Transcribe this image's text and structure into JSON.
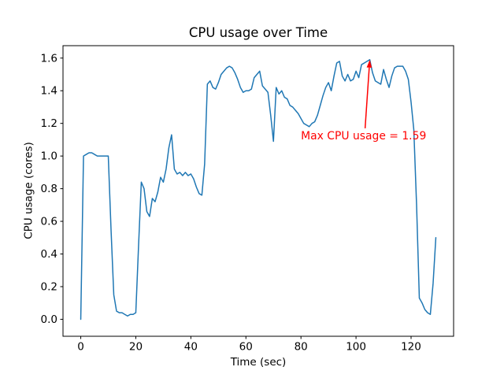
{
  "window": {
    "background": "#ffffff"
  },
  "chart_data": {
    "type": "line",
    "title": "CPU usage over Time",
    "xlabel": "Time (sec)",
    "ylabel": "CPU usage (cores)",
    "grid": false,
    "legend": "none",
    "line_width": 1.5,
    "xlim": [
      -6.45,
      135.45
    ],
    "ylim": [
      -0.104,
      1.676
    ],
    "xticks": [
      0,
      20,
      40,
      60,
      80,
      100,
      120
    ],
    "yticks": [
      0.0,
      0.2,
      0.4,
      0.6,
      0.8,
      1.0,
      1.2,
      1.4,
      1.6
    ],
    "max_value": 1.59,
    "series": [
      {
        "name": "cpu-usage",
        "color": "#1f77b4",
        "x": [
          0,
          1,
          2,
          3,
          4,
          5,
          6,
          7,
          8,
          9,
          10,
          11,
          12,
          13,
          14,
          15,
          16,
          17,
          18,
          19,
          20,
          21,
          22,
          23,
          24,
          25,
          26,
          27,
          28,
          29,
          30,
          31,
          32,
          33,
          34,
          35,
          36,
          37,
          38,
          39,
          40,
          41,
          42,
          43,
          44,
          45,
          46,
          47,
          48,
          49,
          50,
          51,
          52,
          53,
          54,
          55,
          56,
          57,
          58,
          59,
          60,
          61,
          62,
          63,
          64,
          65,
          66,
          67,
          68,
          69,
          70,
          71,
          72,
          73,
          74,
          75,
          76,
          77,
          78,
          79,
          80,
          81,
          82,
          83,
          84,
          85,
          86,
          87,
          88,
          89,
          90,
          91,
          92,
          93,
          94,
          95,
          96,
          97,
          98,
          99,
          100,
          101,
          102,
          103,
          104,
          105,
          106,
          107,
          108,
          109,
          110,
          111,
          112,
          113,
          114,
          115,
          116,
          117,
          118,
          119,
          120,
          121,
          122,
          123,
          124,
          125,
          126,
          127,
          128,
          129
        ],
        "y": [
          0.0,
          1.0,
          1.01,
          1.02,
          1.02,
          1.01,
          1.0,
          1.0,
          1.0,
          1.0,
          1.0,
          0.55,
          0.15,
          0.05,
          0.04,
          0.04,
          0.03,
          0.02,
          0.03,
          0.03,
          0.04,
          0.45,
          0.84,
          0.8,
          0.66,
          0.63,
          0.74,
          0.72,
          0.78,
          0.87,
          0.84,
          0.92,
          1.05,
          1.13,
          0.92,
          0.89,
          0.9,
          0.88,
          0.9,
          0.88,
          0.89,
          0.86,
          0.81,
          0.77,
          0.76,
          0.95,
          1.44,
          1.46,
          1.42,
          1.41,
          1.45,
          1.5,
          1.52,
          1.54,
          1.55,
          1.54,
          1.51,
          1.47,
          1.42,
          1.39,
          1.4,
          1.4,
          1.41,
          1.48,
          1.5,
          1.52,
          1.43,
          1.41,
          1.39,
          1.25,
          1.09,
          1.42,
          1.38,
          1.4,
          1.36,
          1.35,
          1.31,
          1.3,
          1.28,
          1.26,
          1.23,
          1.2,
          1.19,
          1.18,
          1.2,
          1.21,
          1.25,
          1.31,
          1.37,
          1.42,
          1.45,
          1.4,
          1.49,
          1.57,
          1.58,
          1.49,
          1.46,
          1.5,
          1.46,
          1.47,
          1.52,
          1.48,
          1.56,
          1.57,
          1.58,
          1.59,
          1.51,
          1.46,
          1.45,
          1.44,
          1.53,
          1.47,
          1.42,
          1.49,
          1.54,
          1.55,
          1.55,
          1.55,
          1.52,
          1.47,
          1.33,
          1.16,
          0.7,
          0.13,
          0.1,
          0.06,
          0.04,
          0.03,
          0.22,
          0.5
        ]
      }
    ],
    "annotation": {
      "text": "Max CPU usage = 1.59",
      "color": "#ff0000",
      "xy": [
        105,
        1.59
      ],
      "xytext": [
        80,
        1.1
      ],
      "arrow_tail": [
        103.3,
        1.17
      ]
    }
  }
}
